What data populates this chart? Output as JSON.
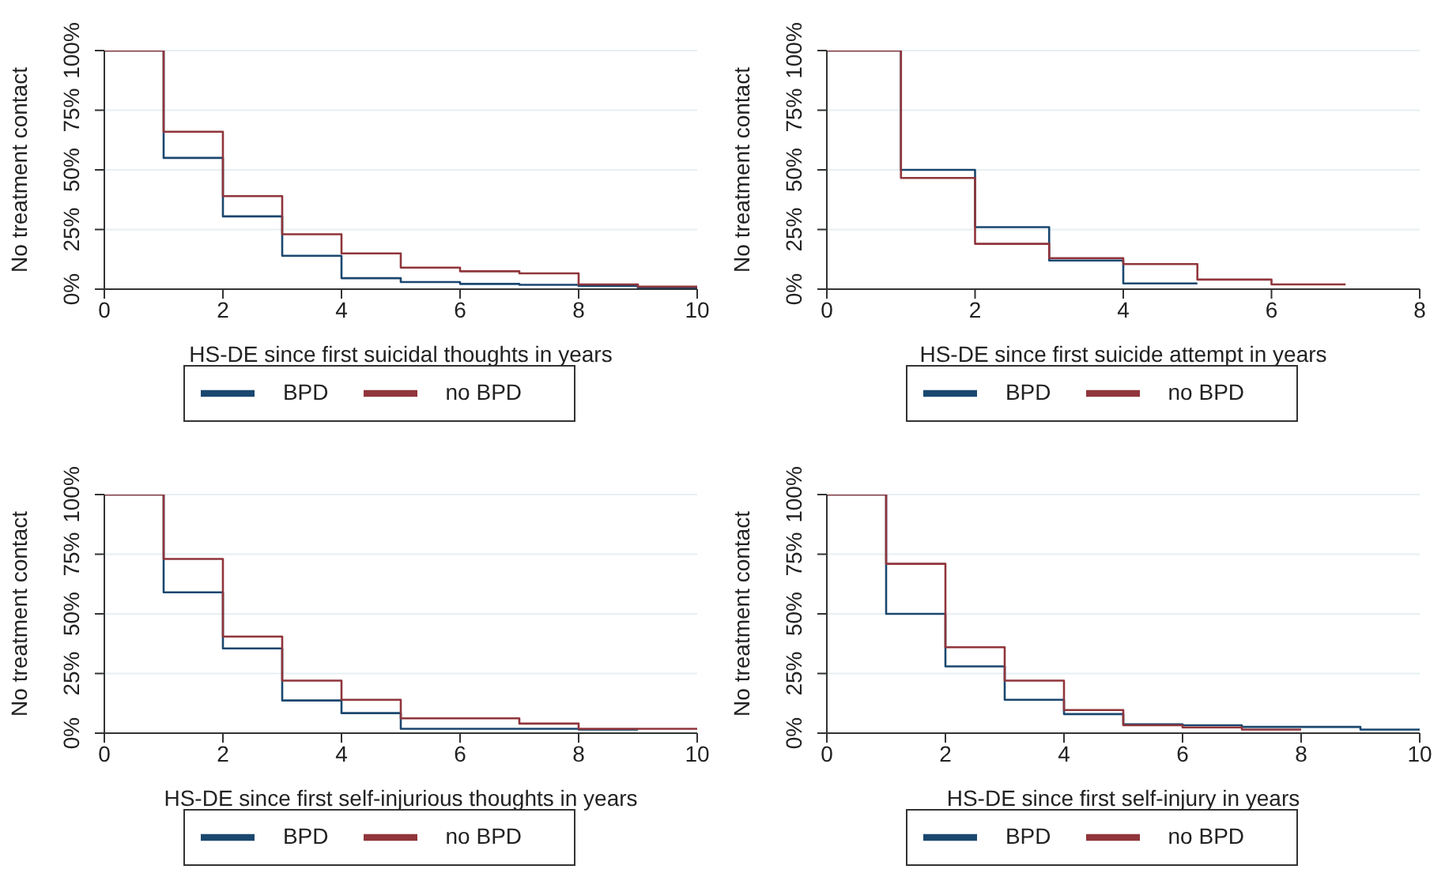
{
  "chart_data": [
    {
      "type": "step",
      "xlabel": "HS-DE since first suicidal thoughts in years",
      "ylabel": "No treatment contact",
      "xlim": [
        0,
        10
      ],
      "xticks": [
        0,
        2,
        4,
        6,
        8,
        10
      ],
      "ylim": [
        0,
        100
      ],
      "yticks": [
        {
          "value": 0,
          "label": "0%"
        },
        {
          "value": 25,
          "label": "25%"
        },
        {
          "value": 50,
          "label": "50%"
        },
        {
          "value": 75,
          "label": "75%"
        },
        {
          "value": 100,
          "label": "100%"
        }
      ],
      "grid": "y",
      "legend": "bottom",
      "marker": "none",
      "line_style": "solid",
      "series": [
        {
          "name": "BPD",
          "color": "#1a476f",
          "x": [
            0,
            1,
            2,
            3,
            4,
            5,
            6,
            7,
            8,
            9,
            10
          ],
          "values": [
            100,
            55,
            30.5,
            14,
            4.6,
            3,
            2.2,
            1.8,
            1.3,
            0.4,
            0.4
          ]
        },
        {
          "name": "no BPD",
          "color": "#90353b",
          "x": [
            0,
            1,
            2,
            3,
            4,
            5,
            6,
            7,
            8,
            9,
            10
          ],
          "values": [
            100,
            66,
            39,
            23,
            15,
            9,
            7.5,
            6.6,
            2,
            1.1,
            1.1
          ]
        }
      ]
    },
    {
      "type": "step",
      "xlabel": "HS-DE since first suicide attempt in years",
      "ylabel": "No treatment contact",
      "xlim": [
        0,
        8
      ],
      "xticks": [
        0,
        2,
        4,
        6,
        8
      ],
      "ylim": [
        0,
        100
      ],
      "yticks": [
        {
          "value": 0,
          "label": "0%"
        },
        {
          "value": 25,
          "label": "25%"
        },
        {
          "value": 50,
          "label": "50%"
        },
        {
          "value": 75,
          "label": "75%"
        },
        {
          "value": 100,
          "label": "100%"
        }
      ],
      "grid": "y",
      "legend": "bottom",
      "marker": "none",
      "line_style": "solid",
      "series": [
        {
          "name": "BPD",
          "color": "#1a476f",
          "x": [
            0,
            1,
            2,
            3,
            4,
            5
          ],
          "values": [
            100,
            50,
            26,
            12,
            2.4,
            2.4
          ]
        },
        {
          "name": "no BPD",
          "color": "#90353b",
          "x": [
            0,
            1,
            2,
            3,
            4,
            5,
            6,
            7
          ],
          "values": [
            100,
            46.6,
            19,
            13,
            10.5,
            4,
            2,
            2
          ]
        }
      ]
    },
    {
      "type": "step",
      "xlabel": "HS-DE since first self-injurious thoughts in years",
      "ylabel": "No treatment contact",
      "xlim": [
        0,
        10
      ],
      "xticks": [
        0,
        2,
        4,
        6,
        8,
        10
      ],
      "ylim": [
        0,
        100
      ],
      "yticks": [
        {
          "value": 0,
          "label": "0%"
        },
        {
          "value": 25,
          "label": "25%"
        },
        {
          "value": 50,
          "label": "50%"
        },
        {
          "value": 75,
          "label": "75%"
        },
        {
          "value": 100,
          "label": "100%"
        }
      ],
      "grid": "y",
      "legend": "bottom",
      "marker": "none",
      "line_style": "solid",
      "series": [
        {
          "name": "BPD",
          "color": "#1a476f",
          "x": [
            0,
            1,
            2,
            3,
            4,
            5,
            6,
            7,
            8,
            9
          ],
          "values": [
            100,
            59,
            35.5,
            13.7,
            8.4,
            1.8,
            1.8,
            1.8,
            1.5,
            1.5
          ]
        },
        {
          "name": "no BPD",
          "color": "#90353b",
          "x": [
            0,
            1,
            2,
            3,
            4,
            5,
            6,
            7,
            8,
            9,
            10
          ],
          "values": [
            100,
            73,
            40.5,
            22,
            14,
            6.2,
            6.2,
            4,
            1.8,
            1.8,
            1.8
          ]
        }
      ]
    },
    {
      "type": "step",
      "xlabel": "HS-DE since first self-injury in years",
      "ylabel": "No treatment contact",
      "xlim": [
        0,
        10
      ],
      "xticks": [
        0,
        2,
        4,
        6,
        8,
        10
      ],
      "ylim": [
        0,
        100
      ],
      "yticks": [
        {
          "value": 0,
          "label": "0%"
        },
        {
          "value": 25,
          "label": "25%"
        },
        {
          "value": 50,
          "label": "50%"
        },
        {
          "value": 75,
          "label": "75%"
        },
        {
          "value": 100,
          "label": "100%"
        }
      ],
      "grid": "y",
      "legend": "bottom",
      "marker": "none",
      "line_style": "solid",
      "series": [
        {
          "name": "BPD",
          "color": "#1a476f",
          "x": [
            0,
            1,
            2,
            3,
            4,
            5,
            6,
            7,
            8,
            9,
            10
          ],
          "values": [
            100,
            50,
            28,
            14,
            8,
            3.7,
            3.3,
            2.6,
            2.6,
            1.5,
            1.5
          ]
        },
        {
          "name": "no BPD",
          "color": "#90353b",
          "x": [
            0,
            1,
            2,
            3,
            4,
            5,
            6,
            7,
            8
          ],
          "values": [
            100,
            71,
            36,
            22,
            9.7,
            3.3,
            2.4,
            1.5,
            1.5
          ]
        }
      ]
    }
  ]
}
